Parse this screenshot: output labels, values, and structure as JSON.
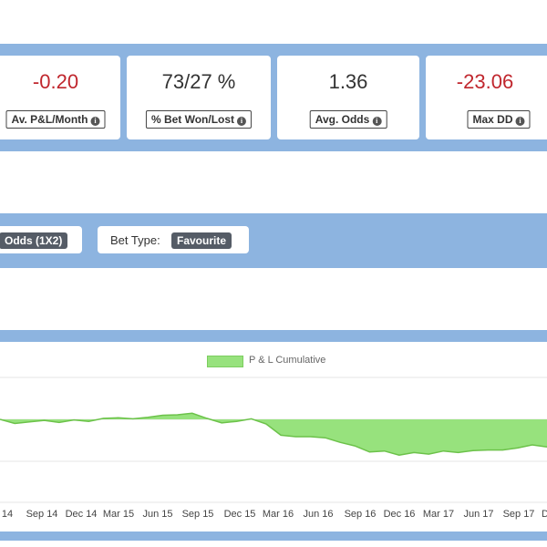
{
  "stats": [
    {
      "value": "-0.20",
      "label": "Av. P&L/Month",
      "color": "#c0262d"
    },
    {
      "value": "73/27 %",
      "label": "% Bet Won/Lost",
      "color": "#333333"
    },
    {
      "value": "1.36",
      "label": "Avg. Odds",
      "color": "#333333"
    },
    {
      "value": "-23.06",
      "label": "Max DD",
      "color": "#c0262d"
    }
  ],
  "filters": {
    "odds_badge": "Odds (1X2)",
    "bet_type_label": "Bet Type:",
    "bet_type_badge": "Favourite"
  },
  "chart_data": {
    "type": "area",
    "legend": "P & L Cumulative",
    "fill_color": "#97e27d",
    "line_color": "#6cc24a",
    "x_tick_labels": [
      "14",
      "Sep 14",
      "Dec 14",
      "Mar 15",
      "Jun 15",
      "Sep 15",
      "Dec 15",
      "Mar 16",
      "Jun 16",
      "Sep 16",
      "Dec 16",
      "Mar 17",
      "Jun 17",
      "Sep 17",
      "D"
    ],
    "series": [
      {
        "values": [
          0,
          -0.8,
          -0.5,
          -0.2,
          -0.6,
          -0.1,
          -0.4,
          0.2,
          0.3,
          0.1,
          0.4,
          0.8,
          0.9,
          1.2,
          0.2,
          -0.7,
          -0.4,
          0.1,
          -0.9,
          -3.1,
          -3.4,
          -3.4,
          -3.6,
          -4.5,
          -5.2,
          -6.4,
          -6.2,
          -7.0,
          -6.5,
          -6.8,
          -6.2,
          -6.5,
          -6.1,
          -6.0,
          -6.0,
          -5.6,
          -5.0,
          -5.4
        ]
      }
    ]
  }
}
